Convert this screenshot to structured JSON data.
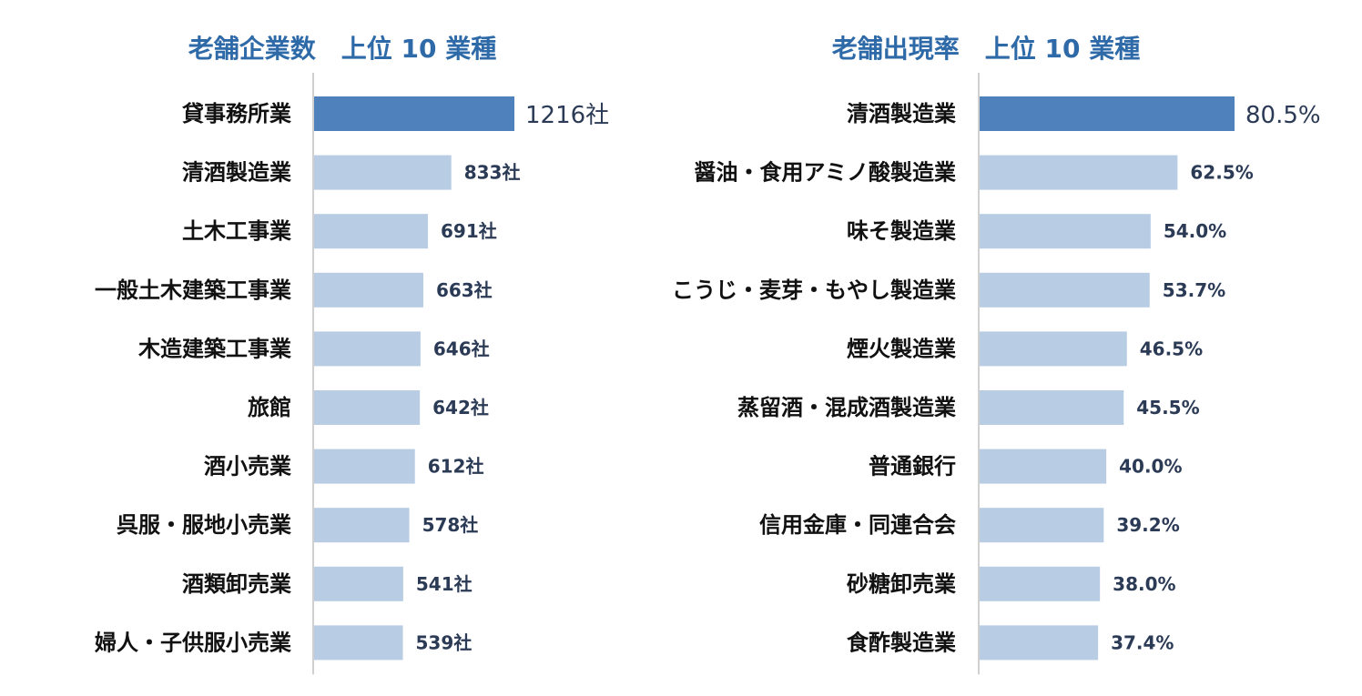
{
  "chart_data": [
    {
      "type": "bar",
      "orientation": "horizontal",
      "title": "老舗企業数　上位 10 業種",
      "categories": [
        "貸事務所業",
        "清酒製造業",
        "土木工事業",
        "一般土木建築工事業",
        "木造建築工事業",
        "旅館",
        "酒小売業",
        "呉服・服地小売業",
        "酒類卸売業",
        "婦人・子供服小売業"
      ],
      "values": [
        1216,
        833,
        691,
        663,
        646,
        642,
        612,
        578,
        541,
        539
      ],
      "value_labels": [
        "1216社",
        "833社",
        "691社",
        "663社",
        "646社",
        "642社",
        "612社",
        "578社",
        "541社",
        "539社"
      ],
      "xlim": [
        0,
        1216
      ],
      "highlight_index": 0,
      "colors": {
        "highlight": "#4f81bd",
        "bar": "#b8cce4",
        "axis": "#d0d0d0"
      }
    },
    {
      "type": "bar",
      "orientation": "horizontal",
      "title": "老舗出現率　上位 10 業種",
      "categories": [
        "清酒製造業",
        "醤油・食用アミノ酸製造業",
        "味そ製造業",
        "こうじ・麦芽・もやし製造業",
        "煙火製造業",
        "蒸留酒・混成酒製造業",
        "普通銀行",
        "信用金庫・同連合会",
        "砂糖卸売業",
        "食酢製造業"
      ],
      "values": [
        80.5,
        62.5,
        54.0,
        53.7,
        46.5,
        45.5,
        40.0,
        39.2,
        38.0,
        37.4
      ],
      "value_labels": [
        "80.5%",
        "62.5%",
        "54.0%",
        "53.7%",
        "46.5%",
        "45.5%",
        "40.0%",
        "39.2%",
        "38.0%",
        "37.4%"
      ],
      "xlim": [
        0,
        80.5
      ],
      "highlight_index": 0,
      "colors": {
        "highlight": "#4f81bd",
        "bar": "#b8cce4",
        "axis": "#d0d0d0"
      }
    }
  ]
}
